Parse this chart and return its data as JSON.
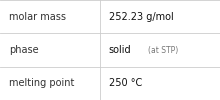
{
  "rows": [
    {
      "label": "molar mass",
      "value": "252.23 g/mol",
      "value2": null
    },
    {
      "label": "phase",
      "value": "solid",
      "value2": "(at STP)"
    },
    {
      "label": "melting point",
      "value": "250 °C",
      "value2": null
    }
  ],
  "col_split": 0.455,
  "background_color": "#ffffff",
  "border_color": "#cccccc",
  "label_fontsize": 7.0,
  "value_fontsize": 7.0,
  "value2_fontsize": 5.5,
  "label_color": "#333333",
  "value_color": "#111111",
  "value2_color": "#777777",
  "font_family": "DejaVu Sans"
}
